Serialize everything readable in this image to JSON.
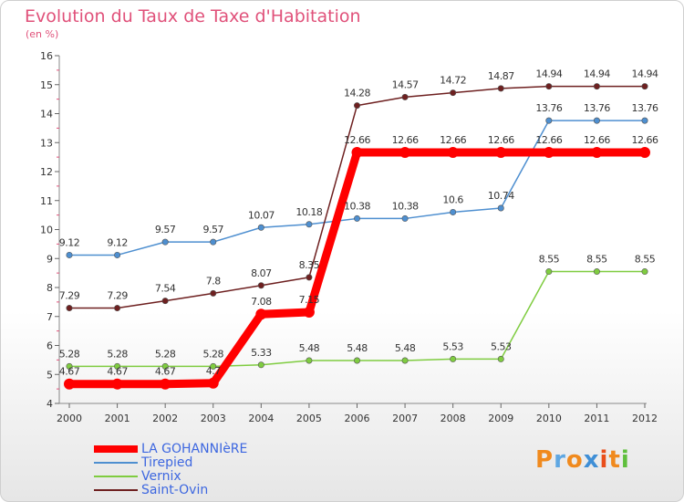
{
  "chart_data": {
    "type": "line",
    "title": "Evolution du Taux de Taxe d'Habitation",
    "subtitle": "(en %)",
    "x": [
      "2000",
      "2001",
      "2002",
      "2003",
      "2004",
      "2005",
      "2006",
      "2007",
      "2008",
      "2009",
      "2010",
      "2011",
      "2012"
    ],
    "ylim": [
      4,
      16
    ],
    "yticks": [
      "4",
      "5",
      "6",
      "7",
      "8",
      "9",
      "10",
      "11",
      "12",
      "13",
      "14",
      "15",
      "16"
    ],
    "grid": false,
    "legend_position": "bottom-left",
    "series": [
      {
        "name": "LA GOHANNIèRE",
        "color": "#ff0000",
        "values": [
          4.67,
          4.67,
          4.67,
          4.7,
          7.08,
          7.15,
          12.66,
          12.66,
          12.66,
          12.66,
          12.66,
          12.66,
          12.66
        ],
        "labels": [
          "4.67",
          "4.67",
          "4.67",
          "4.7",
          "7.08",
          "7.15",
          "12.66",
          "12.66",
          "12.66",
          "12.66",
          "12.66",
          "12.66",
          "12.66"
        ]
      },
      {
        "name": "Tirepied",
        "color": "#4e8fd0",
        "values": [
          9.12,
          9.12,
          9.57,
          9.57,
          10.07,
          10.18,
          10.38,
          10.38,
          10.6,
          10.74,
          13.76,
          13.76,
          13.76
        ],
        "labels": [
          "9.12",
          "9.12",
          "9.57",
          "9.57",
          "10.07",
          "10.18",
          "10.38",
          "10.38",
          "10.6",
          "10.74",
          "13.76",
          "13.76",
          "13.76"
        ]
      },
      {
        "name": "Vernix",
        "color": "#7fcc40",
        "values": [
          5.28,
          5.28,
          5.28,
          5.28,
          5.33,
          5.48,
          5.48,
          5.48,
          5.53,
          5.53,
          8.55,
          8.55,
          8.55
        ],
        "labels": [
          "5.28",
          "5.28",
          "5.28",
          "5.28",
          "5.33",
          "5.48",
          "5.48",
          "5.48",
          "5.53",
          "5.53",
          "8.55",
          "8.55",
          "8.55"
        ]
      },
      {
        "name": "Saint-Ovin",
        "color": "#6e2020",
        "values": [
          7.29,
          7.29,
          7.54,
          7.8,
          8.07,
          8.35,
          14.28,
          14.57,
          14.72,
          14.87,
          14.94,
          14.94,
          14.94
        ],
        "labels": [
          "7.29",
          "7.29",
          "7.54",
          "7.8",
          "8.07",
          "8.35",
          "14.28",
          "14.57",
          "14.72",
          "14.87",
          "14.94",
          "14.94",
          "14.94"
        ]
      }
    ]
  },
  "logo": {
    "letters": [
      "P",
      "r",
      "o",
      "x",
      "i",
      "t",
      "i"
    ],
    "colors": [
      "#f08a1e",
      "#5fa7e2",
      "#f08a1e",
      "#3f8fd6",
      "#e94e1b",
      "#f08a1e",
      "#5fbf3c"
    ]
  }
}
